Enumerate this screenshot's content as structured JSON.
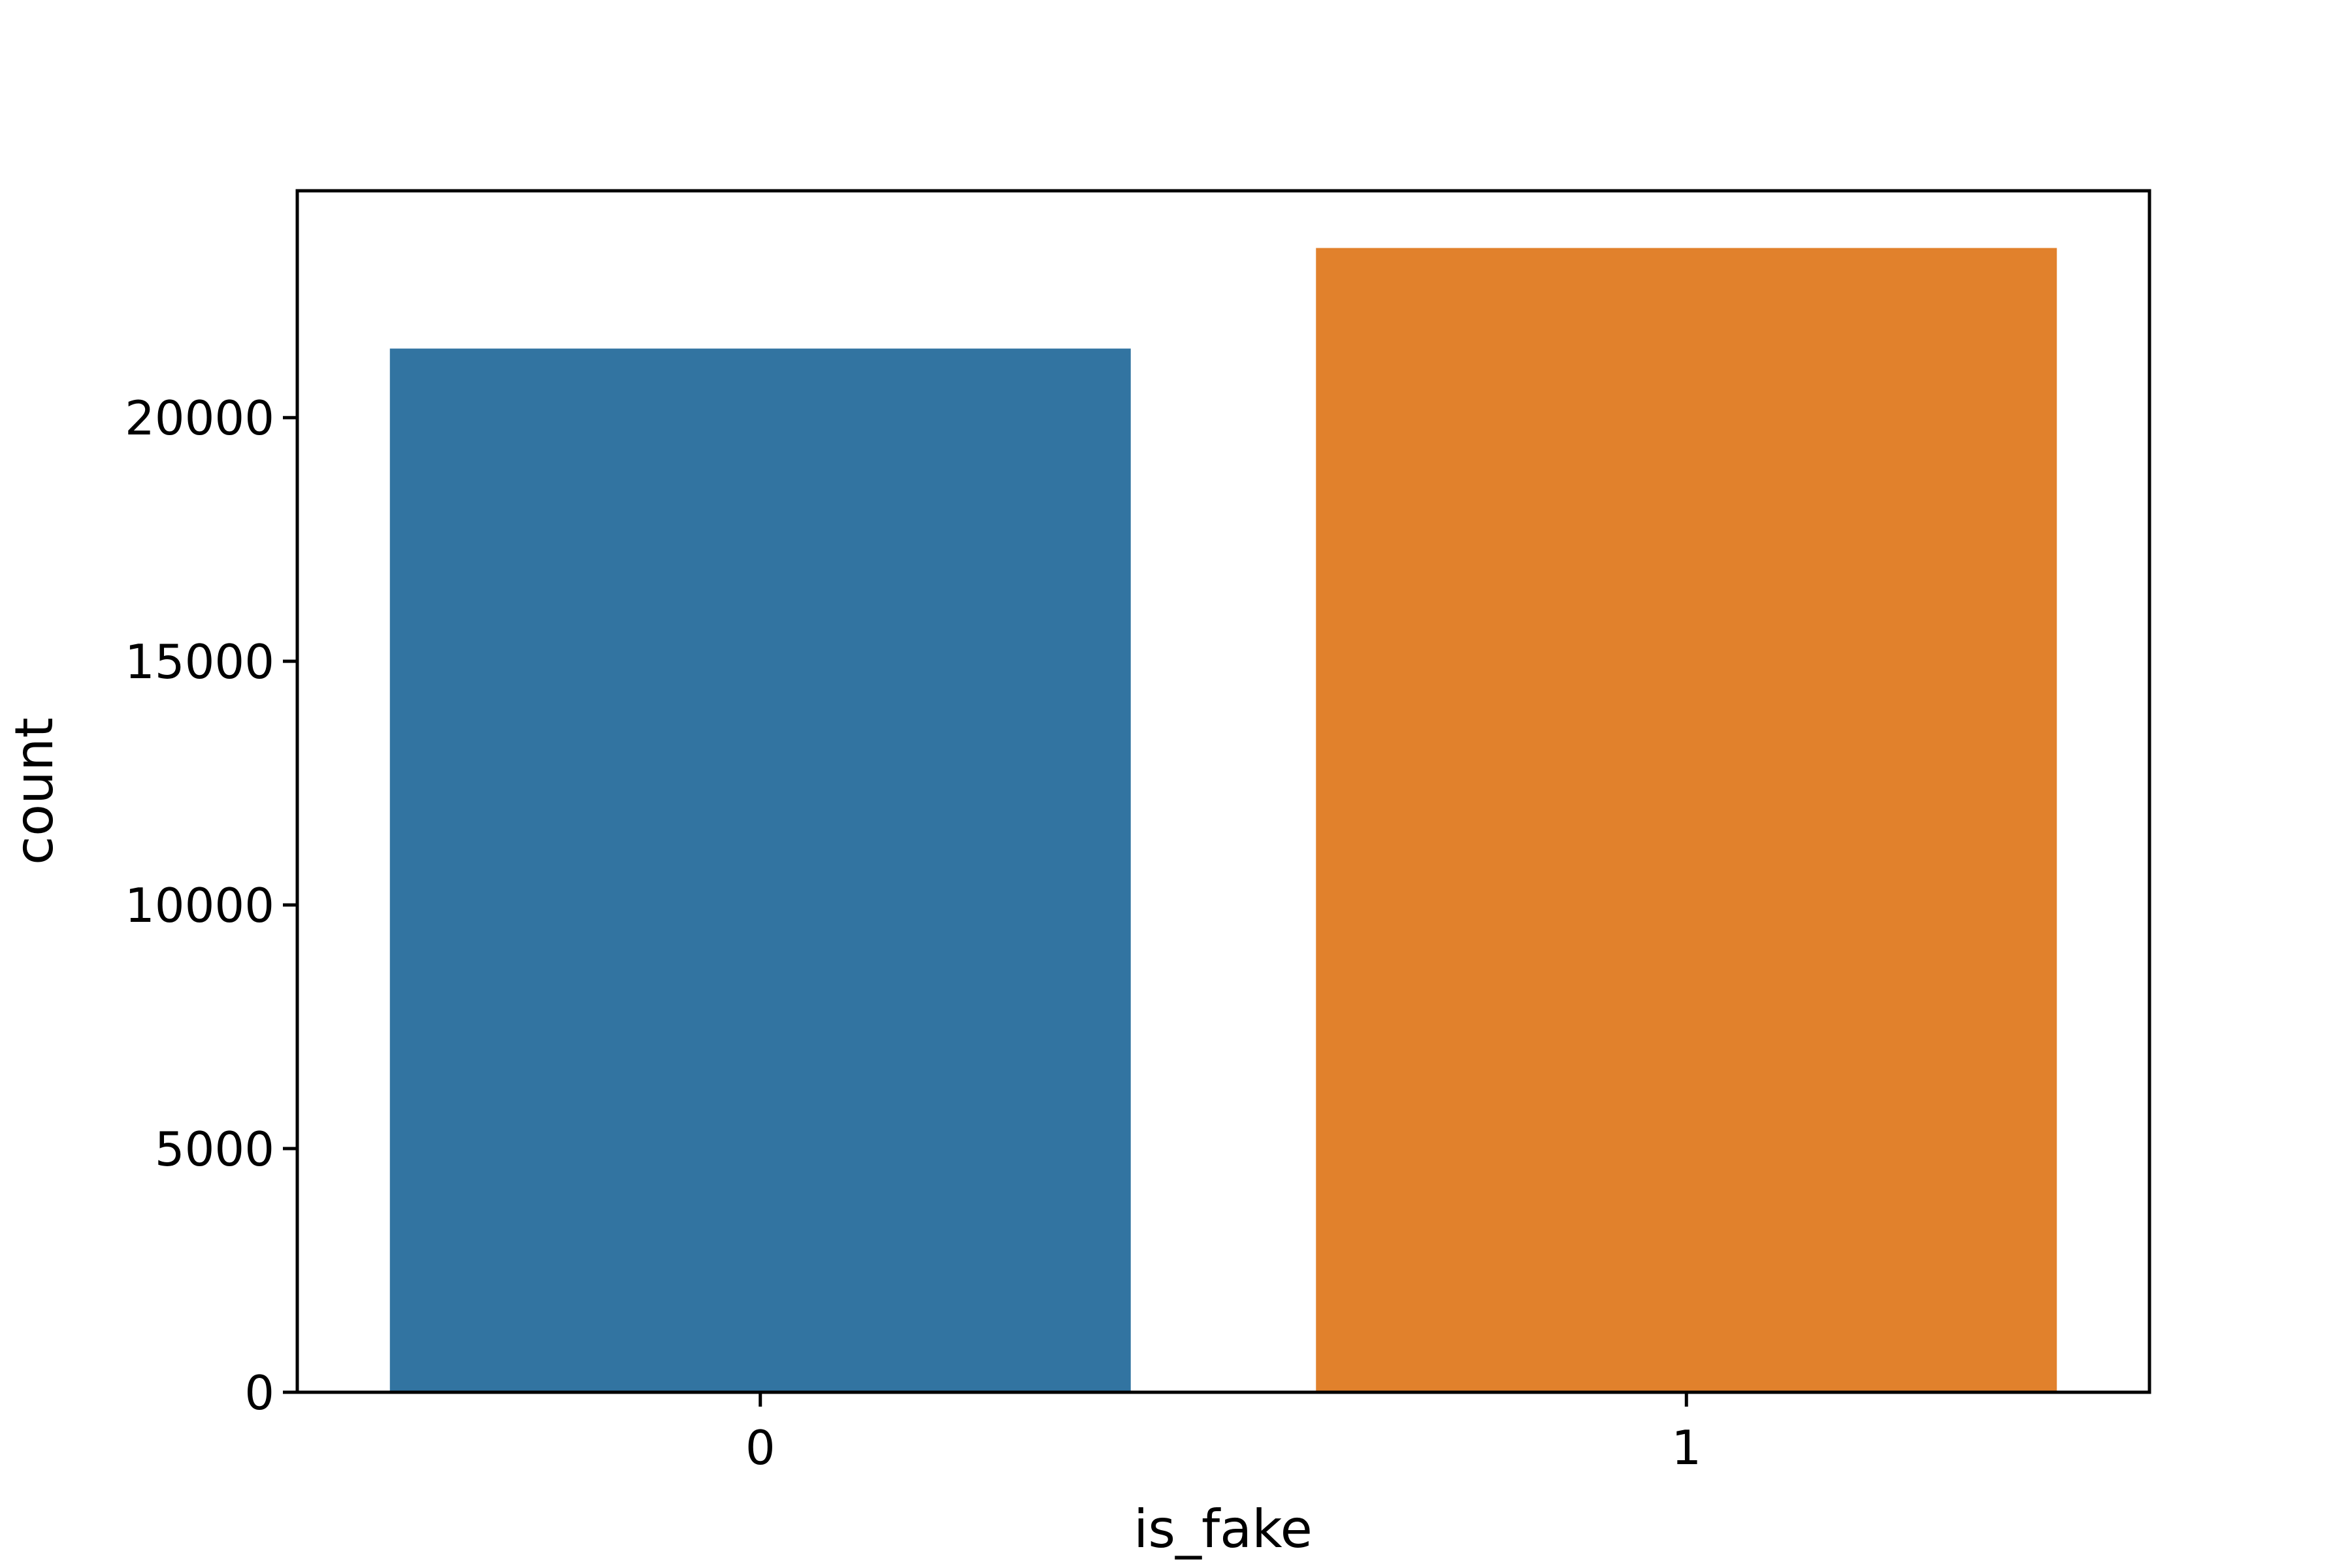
{
  "chart_data": {
    "type": "bar",
    "title": "",
    "xlabel": "is_fake",
    "ylabel": "count",
    "categories": [
      "0",
      "1"
    ],
    "values": [
      21417,
      23481
    ],
    "colors": [
      "#3274a1",
      "#e1812c"
    ],
    "ylim": [
      0,
      24655
    ],
    "yticks": [
      0,
      5000,
      10000,
      15000,
      20000
    ],
    "ytick_labels": [
      "0",
      "5000",
      "10000",
      "15000",
      "20000"
    ],
    "grid": false,
    "legend": "none"
  }
}
